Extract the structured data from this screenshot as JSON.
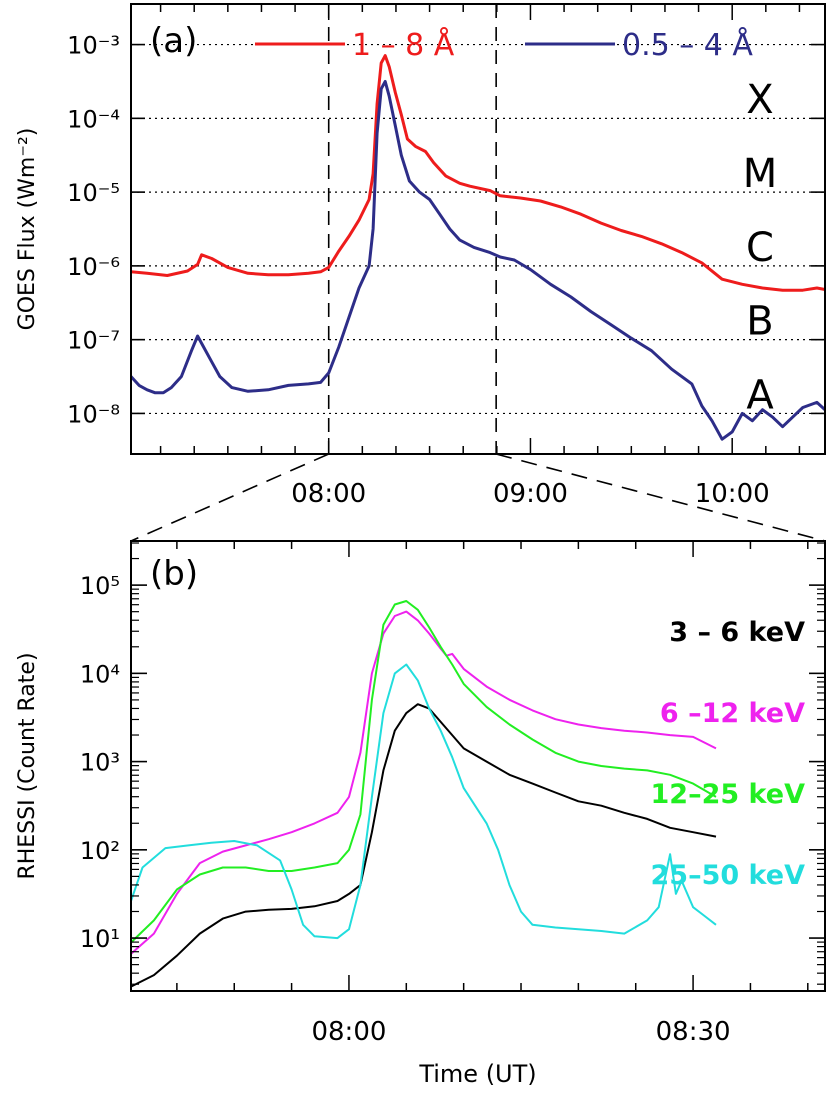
{
  "chart_data": [
    {
      "type": "line",
      "panel_label": "(a)",
      "ylabel": "GOES Flux  (Wm⁻²)",
      "y_scale": "log",
      "ylim_exp": [
        -8.55,
        -2.45
      ],
      "x_unit": "hours UT",
      "xlim": [
        7.02,
        10.46
      ],
      "grid": "horizontal-dotted",
      "yticks": [
        {
          "exp": -3,
          "label": "10⁻³"
        },
        {
          "exp": -4,
          "label": "10⁻⁴"
        },
        {
          "exp": -5,
          "label": "10⁻⁵"
        },
        {
          "exp": -6,
          "label": "10⁻⁶"
        },
        {
          "exp": -7,
          "label": "10⁻⁷"
        },
        {
          "exp": -8,
          "label": "10⁻⁸"
        }
      ],
      "xticks": [
        {
          "h": 8,
          "label": "08:00"
        },
        {
          "h": 9,
          "label": "09:00"
        },
        {
          "h": 10,
          "label": "10:00"
        }
      ],
      "class_labels": [
        {
          "label": "X",
          "exp": -3.7
        },
        {
          "label": "M",
          "exp": -4.7
        },
        {
          "label": "C",
          "exp": -5.7
        },
        {
          "label": "B",
          "exp": -6.7
        },
        {
          "label": "A",
          "exp": -7.7
        }
      ],
      "vlines": [
        8.0,
        8.83
      ],
      "series": [
        {
          "name": "1 – 8 Å",
          "color": "#ee1c1c",
          "points": [
            [
              7.02,
              -6.08
            ],
            [
              7.1,
              -6.1
            ],
            [
              7.2,
              -6.13
            ],
            [
              7.3,
              -6.07
            ],
            [
              7.35,
              -5.98
            ],
            [
              7.37,
              -5.85
            ],
            [
              7.42,
              -5.9
            ],
            [
              7.5,
              -6.02
            ],
            [
              7.6,
              -6.1
            ],
            [
              7.7,
              -6.12
            ],
            [
              7.8,
              -6.12
            ],
            [
              7.9,
              -6.1
            ],
            [
              7.96,
              -6.08
            ],
            [
              8.0,
              -6.02
            ],
            [
              8.05,
              -5.8
            ],
            [
              8.1,
              -5.6
            ],
            [
              8.15,
              -5.38
            ],
            [
              8.2,
              -5.1
            ],
            [
              8.22,
              -4.75
            ],
            [
              8.24,
              -3.8
            ],
            [
              8.26,
              -3.25
            ],
            [
              8.28,
              -3.15
            ],
            [
              8.3,
              -3.3
            ],
            [
              8.33,
              -3.65
            ],
            [
              8.36,
              -3.95
            ],
            [
              8.39,
              -4.28
            ],
            [
              8.43,
              -4.38
            ],
            [
              8.48,
              -4.45
            ],
            [
              8.52,
              -4.6
            ],
            [
              8.58,
              -4.78
            ],
            [
              8.65,
              -4.88
            ],
            [
              8.7,
              -4.92
            ],
            [
              8.8,
              -4.98
            ],
            [
              8.85,
              -5.05
            ],
            [
              8.95,
              -5.08
            ],
            [
              9.05,
              -5.12
            ],
            [
              9.15,
              -5.2
            ],
            [
              9.25,
              -5.3
            ],
            [
              9.35,
              -5.42
            ],
            [
              9.45,
              -5.52
            ],
            [
              9.55,
              -5.6
            ],
            [
              9.65,
              -5.7
            ],
            [
              9.75,
              -5.82
            ],
            [
              9.85,
              -5.96
            ],
            [
              9.95,
              -6.18
            ],
            [
              10.05,
              -6.25
            ],
            [
              10.15,
              -6.3
            ],
            [
              10.25,
              -6.33
            ],
            [
              10.35,
              -6.33
            ],
            [
              10.42,
              -6.3
            ],
            [
              10.46,
              -6.32
            ]
          ]
        },
        {
          "name": "0.5 – 4 Å",
          "color": "#2d2d88",
          "points": [
            [
              7.02,
              -7.5
            ],
            [
              7.06,
              -7.62
            ],
            [
              7.1,
              -7.68
            ],
            [
              7.14,
              -7.72
            ],
            [
              7.18,
              -7.72
            ],
            [
              7.22,
              -7.65
            ],
            [
              7.27,
              -7.5
            ],
            [
              7.32,
              -7.15
            ],
            [
              7.35,
              -6.95
            ],
            [
              7.38,
              -7.1
            ],
            [
              7.42,
              -7.3
            ],
            [
              7.46,
              -7.5
            ],
            [
              7.52,
              -7.65
            ],
            [
              7.6,
              -7.7
            ],
            [
              7.7,
              -7.68
            ],
            [
              7.8,
              -7.62
            ],
            [
              7.9,
              -7.6
            ],
            [
              7.96,
              -7.58
            ],
            [
              8.0,
              -7.45
            ],
            [
              8.05,
              -7.1
            ],
            [
              8.1,
              -6.7
            ],
            [
              8.15,
              -6.3
            ],
            [
              8.2,
              -6.0
            ],
            [
              8.22,
              -5.5
            ],
            [
              8.24,
              -4.2
            ],
            [
              8.26,
              -3.6
            ],
            [
              8.28,
              -3.5
            ],
            [
              8.3,
              -3.7
            ],
            [
              8.33,
              -4.1
            ],
            [
              8.36,
              -4.5
            ],
            [
              8.4,
              -4.85
            ],
            [
              8.45,
              -5.0
            ],
            [
              8.5,
              -5.1
            ],
            [
              8.55,
              -5.3
            ],
            [
              8.6,
              -5.5
            ],
            [
              8.65,
              -5.65
            ],
            [
              8.72,
              -5.75
            ],
            [
              8.8,
              -5.82
            ],
            [
              8.85,
              -5.88
            ],
            [
              8.92,
              -5.92
            ],
            [
              9.0,
              -6.05
            ],
            [
              9.1,
              -6.25
            ],
            [
              9.2,
              -6.42
            ],
            [
              9.3,
              -6.62
            ],
            [
              9.4,
              -6.8
            ],
            [
              9.5,
              -6.98
            ],
            [
              9.6,
              -7.15
            ],
            [
              9.7,
              -7.4
            ],
            [
              9.8,
              -7.6
            ],
            [
              9.85,
              -7.9
            ],
            [
              9.9,
              -8.1
            ],
            [
              9.95,
              -8.35
            ],
            [
              10.0,
              -8.25
            ],
            [
              10.05,
              -8.0
            ],
            [
              10.1,
              -8.1
            ],
            [
              10.15,
              -7.95
            ],
            [
              10.2,
              -8.05
            ],
            [
              10.25,
              -8.18
            ],
            [
              10.3,
              -8.05
            ],
            [
              10.35,
              -7.92
            ],
            [
              10.42,
              -7.85
            ],
            [
              10.46,
              -7.95
            ]
          ]
        }
      ]
    },
    {
      "type": "line",
      "panel_label": "(b)",
      "ylabel": "RHESSI (Count Rate)",
      "xlabel": "Time (UT)",
      "y_scale": "log",
      "ylim_exp": [
        0.4,
        5.5
      ],
      "x_unit": "minutes after 08:00 UT",
      "xlim": [
        -19.0,
        41.5
      ],
      "grid": "none",
      "yticks": [
        {
          "exp": 1,
          "label": "10¹"
        },
        {
          "exp": 2,
          "label": "10²"
        },
        {
          "exp": 3,
          "label": "10³"
        },
        {
          "exp": 4,
          "label": "10⁴"
        },
        {
          "exp": 5,
          "label": "10⁵"
        }
      ],
      "xticks": [
        {
          "m": 0,
          "label": "08:00"
        },
        {
          "m": 30,
          "label": "08:30"
        }
      ],
      "series": [
        {
          "name": "3 – 6 keV",
          "color": "#000000",
          "points": [
            [
              -19,
              0.45
            ],
            [
              -17,
              0.58
            ],
            [
              -15,
              0.8
            ],
            [
              -13,
              1.05
            ],
            [
              -11,
              1.22
            ],
            [
              -9,
              1.3
            ],
            [
              -7,
              1.32
            ],
            [
              -5,
              1.33
            ],
            [
              -3,
              1.36
            ],
            [
              -1,
              1.42
            ],
            [
              0,
              1.5
            ],
            [
              1,
              1.6
            ],
            [
              2,
              2.2
            ],
            [
              3,
              2.9
            ],
            [
              4,
              3.35
            ],
            [
              5,
              3.55
            ],
            [
              6,
              3.65
            ],
            [
              7,
              3.6
            ],
            [
              8,
              3.45
            ],
            [
              9,
              3.3
            ],
            [
              10,
              3.15
            ],
            [
              12,
              3.0
            ],
            [
              14,
              2.85
            ],
            [
              16,
              2.75
            ],
            [
              18,
              2.65
            ],
            [
              20,
              2.55
            ],
            [
              22,
              2.5
            ],
            [
              24,
              2.42
            ],
            [
              26,
              2.35
            ],
            [
              28,
              2.25
            ],
            [
              30,
              2.2
            ],
            [
              32,
              2.15
            ]
          ]
        },
        {
          "name": "6 –12 keV",
          "color": "#ee22ee",
          "points": [
            [
              -19,
              0.82
            ],
            [
              -17,
              1.05
            ],
            [
              -15,
              1.5
            ],
            [
              -13,
              1.85
            ],
            [
              -11,
              1.98
            ],
            [
              -9,
              2.05
            ],
            [
              -7,
              2.12
            ],
            [
              -5,
              2.2
            ],
            [
              -3,
              2.3
            ],
            [
              -1,
              2.42
            ],
            [
              0,
              2.6
            ],
            [
              1,
              3.1
            ],
            [
              2,
              4.0
            ],
            [
              3,
              4.45
            ],
            [
              4,
              4.65
            ],
            [
              5,
              4.7
            ],
            [
              6,
              4.6
            ],
            [
              7,
              4.45
            ],
            [
              8,
              4.28
            ],
            [
              8.5,
              4.2
            ],
            [
              9,
              4.22
            ],
            [
              10,
              4.05
            ],
            [
              12,
              3.85
            ],
            [
              14,
              3.7
            ],
            [
              16,
              3.58
            ],
            [
              18,
              3.48
            ],
            [
              20,
              3.42
            ],
            [
              22,
              3.38
            ],
            [
              24,
              3.35
            ],
            [
              26,
              3.33
            ],
            [
              28,
              3.3
            ],
            [
              30,
              3.28
            ],
            [
              32,
              3.15
            ]
          ]
        },
        {
          "name": "12–25 keV",
          "color": "#22ee22",
          "points": [
            [
              -19,
              0.95
            ],
            [
              -17,
              1.2
            ],
            [
              -15,
              1.55
            ],
            [
              -13,
              1.72
            ],
            [
              -11,
              1.8
            ],
            [
              -9,
              1.8
            ],
            [
              -7,
              1.76
            ],
            [
              -5,
              1.76
            ],
            [
              -3,
              1.8
            ],
            [
              -1,
              1.85
            ],
            [
              0,
              2.0
            ],
            [
              1,
              2.4
            ],
            [
              2,
              3.7
            ],
            [
              3,
              4.55
            ],
            [
              4,
              4.78
            ],
            [
              5,
              4.82
            ],
            [
              6,
              4.72
            ],
            [
              7,
              4.52
            ],
            [
              8,
              4.3
            ],
            [
              9,
              4.1
            ],
            [
              10,
              3.88
            ],
            [
              12,
              3.62
            ],
            [
              14,
              3.42
            ],
            [
              16,
              3.25
            ],
            [
              18,
              3.1
            ],
            [
              20,
              3.0
            ],
            [
              22,
              2.95
            ],
            [
              24,
              2.92
            ],
            [
              26,
              2.9
            ],
            [
              28,
              2.85
            ],
            [
              30,
              2.75
            ],
            [
              32,
              2.6
            ]
          ]
        },
        {
          "name": "25–50 keV",
          "color": "#22dddd",
          "points": [
            [
              -19,
              1.42
            ],
            [
              -18,
              1.8
            ],
            [
              -16,
              2.02
            ],
            [
              -14,
              2.05
            ],
            [
              -12,
              2.08
            ],
            [
              -10,
              2.1
            ],
            [
              -8,
              2.05
            ],
            [
              -6,
              1.88
            ],
            [
              -5,
              1.55
            ],
            [
              -4,
              1.15
            ],
            [
              -3,
              1.02
            ],
            [
              -1,
              1.0
            ],
            [
              0,
              1.1
            ],
            [
              1,
              1.6
            ],
            [
              2,
              2.6
            ],
            [
              3,
              3.55
            ],
            [
              4,
              4.0
            ],
            [
              5,
              4.1
            ],
            [
              6,
              3.92
            ],
            [
              7,
              3.6
            ],
            [
              8,
              3.35
            ],
            [
              9,
              3.05
            ],
            [
              10,
              2.7
            ],
            [
              11,
              2.5
            ],
            [
              12,
              2.3
            ],
            [
              13,
              2.0
            ],
            [
              14,
              1.6
            ],
            [
              15,
              1.3
            ],
            [
              16,
              1.15
            ],
            [
              18,
              1.12
            ],
            [
              20,
              1.1
            ],
            [
              22,
              1.08
            ],
            [
              24,
              1.05
            ],
            [
              26,
              1.2
            ],
            [
              27,
              1.35
            ],
            [
              28,
              1.95
            ],
            [
              28.5,
              1.5
            ],
            [
              29,
              1.65
            ],
            [
              30,
              1.35
            ],
            [
              31,
              1.25
            ],
            [
              32,
              1.15
            ]
          ]
        }
      ]
    }
  ]
}
